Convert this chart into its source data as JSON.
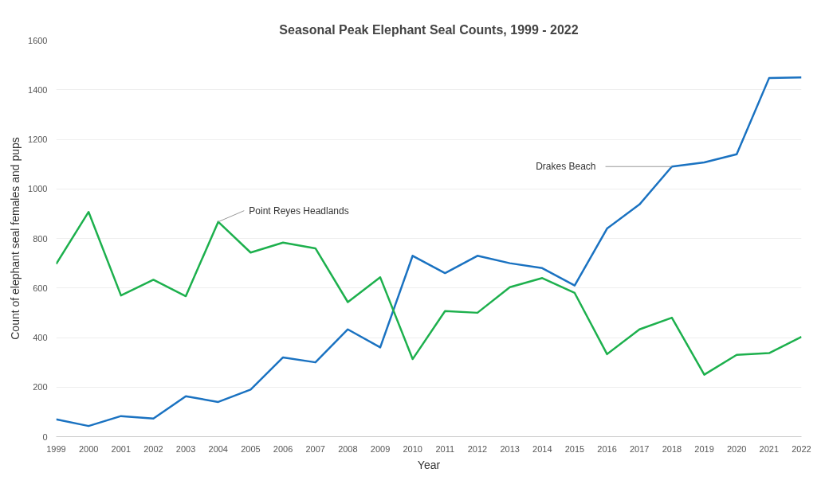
{
  "chart_data": {
    "type": "line",
    "title": "Seasonal Peak Elephant Seal Counts, 1999 - 2022",
    "xlabel": "Year",
    "ylabel": "Count of elephant seal females and pups",
    "x": [
      1999,
      2000,
      2001,
      2002,
      2003,
      2004,
      2005,
      2006,
      2007,
      2008,
      2009,
      2010,
      2011,
      2012,
      2013,
      2014,
      2015,
      2016,
      2017,
      2018,
      2019,
      2020,
      2021,
      2022
    ],
    "series": [
      {
        "color": "#1a72c1",
        "values": [
          70,
          43,
          83,
          73,
          163,
          140,
          190,
          320,
          300,
          433,
          360,
          730,
          660,
          730,
          700,
          680,
          610,
          840,
          937,
          1090,
          1107,
          1140,
          1447,
          1450
        ]
      },
      {
        "color": "#1db04d",
        "values": [
          697,
          907,
          570,
          633,
          567,
          867,
          743,
          783,
          760,
          543,
          643,
          313,
          507,
          500,
          603,
          640,
          580,
          333,
          433,
          480,
          250,
          330,
          337,
          403
        ]
      }
    ],
    "annotations": [
      {
        "text": "Point Reyes Headlands",
        "x": 2004,
        "y": 867
      },
      {
        "text": "Drakes Beach",
        "x": 2018,
        "y": 1090
      }
    ],
    "xlim": [
      1999,
      2022
    ],
    "xticks": [
      1999,
      2000,
      2001,
      2002,
      2003,
      2004,
      2005,
      2006,
      2007,
      2008,
      2009,
      2010,
      2011,
      2012,
      2013,
      2014,
      2015,
      2016,
      2017,
      2018,
      2019,
      2020,
      2021,
      2022
    ],
    "ylim": [
      0,
      1600
    ],
    "yticks": [
      0,
      200,
      400,
      600,
      800,
      1000,
      1200,
      1400,
      1600
    ],
    "grid": "y",
    "marker": "none",
    "line_style": "solid"
  }
}
